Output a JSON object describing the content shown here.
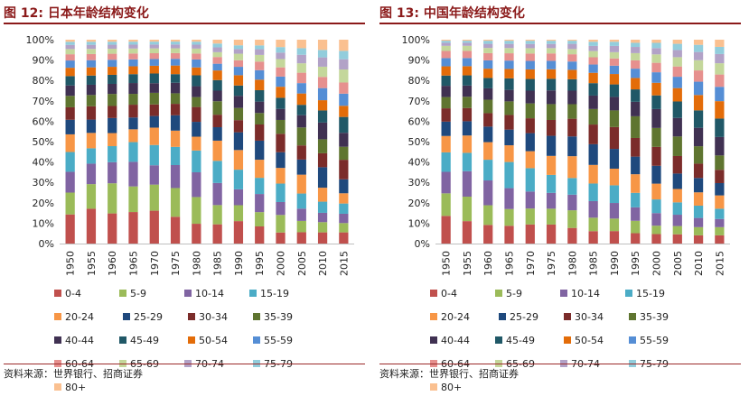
{
  "left_panel": {
    "title": "图 12:  日本年龄结构变化",
    "source": "资料来源：世界银行、招商证券"
  },
  "right_panel": {
    "title": "图 13:  中国年龄结构变化",
    "source": "资料来源：世界银行、招商证券"
  },
  "colors": [
    "#c0504d",
    "#9bbb59",
    "#8064a2",
    "#4bacc6",
    "#f79646",
    "#1f497d",
    "#7b2c2a",
    "#5f7530",
    "#403152",
    "#205867",
    "#e36c09",
    "#558ed5",
    "#e6908e",
    "#c4d79b",
    "#b2a2c7",
    "#92cddc",
    "#fac090"
  ],
  "chart_data": [
    {
      "type": "stacked_bar_100",
      "title": "图 12:  日本年龄结构变化",
      "categories": [
        "1950",
        "1955",
        "1960",
        "1965",
        "1970",
        "1975",
        "1980",
        "1985",
        "1990",
        "1995",
        "2000",
        "2005",
        "2010",
        "2015"
      ],
      "series": [
        {
          "name": "0-4",
          "values": [
            14.0,
            17.0,
            15.0,
            16.0,
            17.0,
            14.0,
            10.0,
            10.0,
            12.0,
            9.0,
            6.0,
            6.0,
            6.0,
            6.0
          ]
        },
        {
          "name": "5-9",
          "values": [
            10.5,
            12.0,
            15.0,
            13.0,
            13.5,
            15.0,
            13.5,
            10.0,
            8.5,
            7.5,
            9.5,
            6.0,
            5.5,
            5.0
          ]
        },
        {
          "name": "10-14",
          "values": [
            10.0,
            10.0,
            10.5,
            12.5,
            10.0,
            12.0,
            12.5,
            11.5,
            8.5,
            9.5,
            7.0,
            6.5,
            5.0,
            5.0
          ]
        },
        {
          "name": "15-19",
          "values": [
            9.5,
            7.5,
            8.0,
            10.0,
            10.5,
            9.5,
            11.0,
            11.5,
            10.5,
            8.5,
            10.0,
            8.0,
            6.0,
            5.5
          ]
        },
        {
          "name": "20-24",
          "values": [
            8.5,
            7.5,
            6.5,
            6.5,
            9.0,
            8.5,
            7.0,
            10.5,
            10.5,
            9.5,
            8.5,
            10.0,
            7.5,
            5.5
          ]
        },
        {
          "name": "25-29",
          "values": [
            7.0,
            6.5,
            7.5,
            6.0,
            6.0,
            8.0,
            7.5,
            7.0,
            9.5,
            10.0,
            8.5,
            8.0,
            11.0,
            7.5
          ]
        },
        {
          "name": "30-34",
          "values": [
            6.0,
            6.5,
            6.0,
            6.5,
            6.0,
            6.0,
            7.5,
            6.5,
            6.5,
            8.5,
            10.0,
            7.5,
            7.5,
            10.5
          ]
        },
        {
          "name": "35-39",
          "values": [
            5.5,
            5.5,
            6.0,
            5.5,
            6.0,
            5.5,
            5.0,
            7.0,
            6.5,
            6.0,
            7.5,
            9.5,
            7.5,
            7.0
          ]
        },
        {
          "name": "40-44",
          "values": [
            5.0,
            5.0,
            5.0,
            5.5,
            5.0,
            5.5,
            5.5,
            5.5,
            6.5,
            6.0,
            6.0,
            6.5,
            9.0,
            7.5
          ]
        },
        {
          "name": "45-49",
          "values": [
            4.5,
            4.5,
            4.5,
            4.5,
            5.0,
            4.5,
            5.5,
            5.5,
            5.5,
            6.0,
            6.0,
            5.5,
            6.5,
            8.5
          ]
        },
        {
          "name": "50-54",
          "values": [
            4.0,
            4.0,
            4.0,
            4.0,
            4.0,
            4.5,
            4.0,
            5.0,
            5.5,
            5.5,
            6.0,
            6.0,
            5.5,
            6.0
          ]
        },
        {
          "name": "55-59",
          "values": [
            3.5,
            3.5,
            3.5,
            3.5,
            3.5,
            3.5,
            4.0,
            3.5,
            4.5,
            5.0,
            5.5,
            5.5,
            6.5,
            6.5
          ]
        },
        {
          "name": "60-64",
          "values": [
            3.0,
            3.0,
            3.0,
            3.0,
            3.0,
            3.0,
            3.0,
            3.5,
            3.5,
            4.5,
            5.0,
            5.5,
            6.0,
            6.0
          ]
        },
        {
          "name": "65-69",
          "values": [
            2.5,
            2.5,
            2.5,
            2.5,
            2.5,
            2.5,
            2.5,
            2.5,
            3.5,
            3.5,
            4.5,
            5.0,
            5.5,
            7.0
          ]
        },
        {
          "name": "70-74",
          "values": [
            2.0,
            2.0,
            2.0,
            2.0,
            2.0,
            2.0,
            2.0,
            2.5,
            2.5,
            3.0,
            3.5,
            4.5,
            5.0,
            5.5
          ]
        },
        {
          "name": "75-79",
          "values": [
            1.5,
            1.5,
            1.5,
            1.5,
            1.5,
            1.5,
            1.5,
            2.0,
            2.0,
            2.0,
            3.0,
            3.5,
            4.0,
            4.5
          ]
        },
        {
          "name": "80+",
          "values": [
            1.0,
            1.0,
            1.0,
            1.0,
            1.0,
            1.0,
            1.0,
            2.0,
            3.0,
            3.0,
            4.0,
            4.5,
            5.5,
            6.0
          ]
        }
      ],
      "ylim": [
        0,
        100
      ],
      "yticks": [
        "0%",
        "10%",
        "20%",
        "30%",
        "40%",
        "50%",
        "60%",
        "70%",
        "80%",
        "90%",
        "100%"
      ]
    },
    {
      "type": "stacked_bar_100",
      "title": "图 13:  中国年龄结构变化",
      "categories": [
        "1950",
        "1955",
        "1960",
        "1965",
        "1970",
        "1975",
        "1980",
        "1985",
        "1990",
        "1995",
        "2000",
        "2005",
        "2010",
        "2015"
      ],
      "series": [
        {
          "name": "0-4",
          "values": [
            13.5,
            11.0,
            9.0,
            8.5,
            9.0,
            9.0,
            7.5,
            6.0,
            6.0,
            5.0,
            4.5,
            4.5,
            4.0,
            4.0
          ]
        },
        {
          "name": "5-9",
          "values": [
            11.0,
            12.0,
            9.5,
            8.0,
            7.5,
            7.5,
            8.5,
            6.5,
            6.0,
            6.0,
            4.0,
            4.0,
            4.0,
            4.0
          ]
        },
        {
          "name": "10-14",
          "values": [
            10.5,
            12.5,
            12.0,
            10.0,
            8.0,
            7.5,
            7.5,
            8.0,
            7.5,
            6.5,
            6.0,
            5.5,
            4.5,
            4.0
          ]
        },
        {
          "name": "15-19",
          "values": [
            9.5,
            9.0,
            10.0,
            12.5,
            11.0,
            8.5,
            8.0,
            8.5,
            8.5,
            7.0,
            6.5,
            6.0,
            6.0,
            5.0
          ]
        },
        {
          "name": "20-24",
          "values": [
            8.0,
            8.5,
            8.5,
            8.0,
            8.0,
            9.0,
            10.5,
            9.0,
            8.0,
            9.0,
            7.5,
            6.5,
            6.5,
            6.5
          ]
        },
        {
          "name": "25-29",
          "values": [
            7.0,
            7.0,
            7.5,
            7.5,
            8.5,
            9.5,
            9.5,
            10.0,
            9.5,
            8.5,
            8.5,
            7.5,
            7.0,
            6.0
          ]
        },
        {
          "name": "30-34",
          "values": [
            6.5,
            6.5,
            6.5,
            7.0,
            7.0,
            7.5,
            8.5,
            9.5,
            10.5,
            9.0,
            9.0,
            8.5,
            7.0,
            6.5
          ]
        },
        {
          "name": "35-39",
          "values": [
            5.5,
            5.5,
            6.5,
            6.5,
            7.0,
            7.5,
            7.0,
            7.5,
            8.0,
            10.5,
            9.0,
            9.5,
            8.5,
            7.0
          ]
        },
        {
          "name": "40-44",
          "values": [
            5.5,
            5.5,
            5.5,
            5.5,
            6.0,
            6.5,
            6.5,
            6.5,
            6.5,
            7.0,
            9.0,
            9.0,
            9.0,
            9.0
          ]
        },
        {
          "name": "45-49",
          "values": [
            5.0,
            5.0,
            5.0,
            5.5,
            5.5,
            5.5,
            5.5,
            6.0,
            6.0,
            6.0,
            6.5,
            8.0,
            8.5,
            9.0
          ]
        },
        {
          "name": "50-54",
          "values": [
            4.5,
            4.5,
            4.5,
            4.5,
            4.5,
            4.5,
            4.5,
            5.0,
            5.0,
            5.5,
            6.0,
            6.5,
            7.5,
            8.5
          ]
        },
        {
          "name": "55-59",
          "values": [
            4.0,
            4.0,
            4.0,
            4.0,
            4.0,
            4.0,
            4.0,
            4.0,
            4.0,
            4.5,
            5.0,
            5.5,
            6.5,
            7.0
          ]
        },
        {
          "name": "60-64",
          "values": [
            3.5,
            3.5,
            3.5,
            3.5,
            3.5,
            3.5,
            3.5,
            3.5,
            3.5,
            4.0,
            4.5,
            5.0,
            5.5,
            6.0
          ]
        },
        {
          "name": "65-69",
          "values": [
            2.5,
            2.5,
            2.5,
            2.5,
            2.5,
            2.5,
            2.5,
            3.0,
            3.0,
            3.5,
            4.0,
            4.5,
            5.0,
            5.5
          ]
        },
        {
          "name": "70-74",
          "values": [
            1.5,
            1.5,
            2.0,
            2.0,
            2.0,
            2.0,
            2.5,
            2.5,
            3.0,
            3.0,
            3.0,
            3.5,
            4.0,
            4.5
          ]
        },
        {
          "name": "75-79",
          "values": [
            1.0,
            1.0,
            1.5,
            1.5,
            1.5,
            1.5,
            1.5,
            2.0,
            2.0,
            2.0,
            2.5,
            3.0,
            3.5,
            3.5
          ]
        },
        {
          "name": "80+",
          "values": [
            0.5,
            0.5,
            0.5,
            0.5,
            0.5,
            0.5,
            0.5,
            1.0,
            1.0,
            1.5,
            1.5,
            2.0,
            2.5,
            3.5
          ]
        }
      ],
      "ylim": [
        0,
        100
      ],
      "yticks": [
        "0%",
        "10%",
        "20%",
        "30%",
        "40%",
        "50%",
        "60%",
        "70%",
        "80%",
        "90%",
        "100%"
      ]
    }
  ]
}
